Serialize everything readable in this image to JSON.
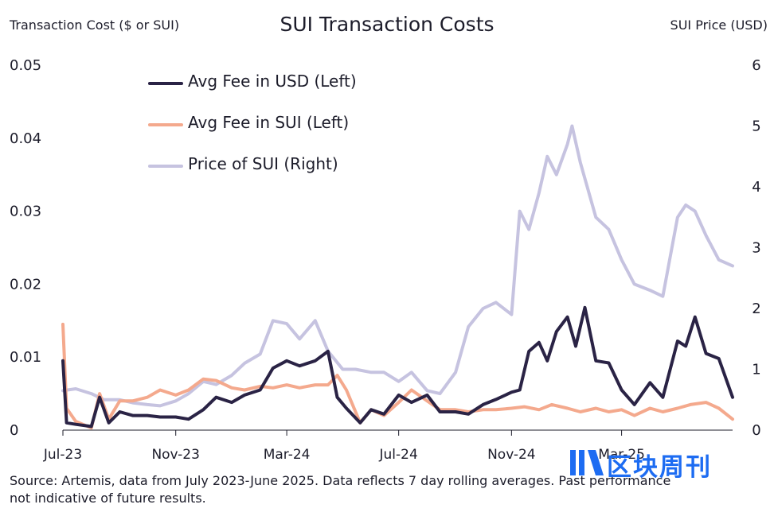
{
  "title": "SUI Transaction Costs",
  "ylabel_left": "Transaction Cost ($ or SUI)",
  "ylabel_right": "SUI Price (USD)",
  "source": "Source: Artemis, data from July 2023-June 2025. Data reflects 7 day rolling averages. Past performance not indicative of future results.",
  "watermark": "区块周刊",
  "colors": {
    "usd": "#2a2345",
    "sui": "#f4a98d",
    "price": "#c6c3e0",
    "axis": "#1c1c2a"
  },
  "chart_data": {
    "type": "line",
    "title": "SUI Transaction Costs",
    "xlabel": "",
    "ylabel": "Transaction Cost ($ or SUI)",
    "y2label": "SUI Price (USD)",
    "xlim": [
      "2023-07-01",
      "2025-06-30"
    ],
    "ylim": [
      0,
      0.05
    ],
    "y2lim": [
      0,
      6
    ],
    "x_ticks": [
      {
        "date": "2023-07-01",
        "label": "Jul-23"
      },
      {
        "date": "2023-11-01",
        "label": "Nov-23"
      },
      {
        "date": "2024-03-01",
        "label": "Mar-24"
      },
      {
        "date": "2024-07-01",
        "label": "Jul-24"
      },
      {
        "date": "2024-11-01",
        "label": "Nov-24"
      },
      {
        "date": "2025-03-01",
        "label": "Mar-25"
      }
    ],
    "y_ticks": [
      "0",
      "0.01",
      "0.02",
      "0.03",
      "0.04",
      "0.05"
    ],
    "y_tick_values": [
      0,
      0.01,
      0.02,
      0.03,
      0.04,
      0.05
    ],
    "y2_ticks": [
      "0",
      "1",
      "2",
      "3",
      "4",
      "5",
      "6"
    ],
    "y2_tick_values": [
      0,
      1,
      2,
      3,
      4,
      5,
      6
    ],
    "grid": false,
    "legend_position": "top-left",
    "series": [
      {
        "name": "Avg Fee in USD (Left)",
        "axis": "left",
        "color": "#2a2345",
        "x": [
          "2023-07-01",
          "2023-07-05",
          "2023-07-15",
          "2023-08-01",
          "2023-08-10",
          "2023-08-20",
          "2023-09-01",
          "2023-09-15",
          "2023-10-01",
          "2023-10-15",
          "2023-11-01",
          "2023-11-15",
          "2023-12-01",
          "2023-12-15",
          "2024-01-01",
          "2024-01-15",
          "2024-02-01",
          "2024-02-15",
          "2024-03-01",
          "2024-03-15",
          "2024-04-01",
          "2024-04-15",
          "2024-04-25",
          "2024-05-05",
          "2024-05-20",
          "2024-06-01",
          "2024-06-15",
          "2024-07-01",
          "2024-07-15",
          "2024-08-01",
          "2024-08-15",
          "2024-09-01",
          "2024-09-15",
          "2024-10-01",
          "2024-10-15",
          "2024-11-01",
          "2024-11-10",
          "2024-11-20",
          "2024-12-01",
          "2024-12-10",
          "2024-12-20",
          "2025-01-01",
          "2025-01-10",
          "2025-01-20",
          "2025-02-01",
          "2025-02-15",
          "2025-03-01",
          "2025-03-15",
          "2025-04-01",
          "2025-04-15",
          "2025-05-01",
          "2025-05-10",
          "2025-05-20",
          "2025-06-01",
          "2025-06-15",
          "2025-06-30"
        ],
        "values": [
          0.0095,
          0.001,
          0.0008,
          0.0005,
          0.0045,
          0.001,
          0.0025,
          0.002,
          0.002,
          0.0018,
          0.0018,
          0.0015,
          0.0028,
          0.0045,
          0.0038,
          0.0048,
          0.0055,
          0.0085,
          0.0095,
          0.0088,
          0.0095,
          0.0108,
          0.0045,
          0.003,
          0.001,
          0.0028,
          0.0022,
          0.0048,
          0.0038,
          0.0048,
          0.0025,
          0.0025,
          0.0022,
          0.0035,
          0.0042,
          0.0052,
          0.0055,
          0.0108,
          0.012,
          0.0095,
          0.0135,
          0.0155,
          0.0115,
          0.0168,
          0.0095,
          0.0092,
          0.0055,
          0.0035,
          0.0065,
          0.0045,
          0.0122,
          0.0115,
          0.0155,
          0.0105,
          0.0098,
          0.0045
        ]
      },
      {
        "name": "Avg Fee in SUI (Left)",
        "axis": "left",
        "color": "#f4a98d",
        "x": [
          "2023-07-01",
          "2023-07-05",
          "2023-07-15",
          "2023-08-01",
          "2023-08-10",
          "2023-08-20",
          "2023-09-01",
          "2023-09-15",
          "2023-10-01",
          "2023-10-15",
          "2023-11-01",
          "2023-11-15",
          "2023-12-01",
          "2023-12-15",
          "2024-01-01",
          "2024-01-15",
          "2024-02-01",
          "2024-02-15",
          "2024-03-01",
          "2024-03-15",
          "2024-04-01",
          "2024-04-15",
          "2024-04-25",
          "2024-05-05",
          "2024-05-20",
          "2024-06-01",
          "2024-06-15",
          "2024-07-01",
          "2024-07-15",
          "2024-08-01",
          "2024-08-15",
          "2024-09-01",
          "2024-09-15",
          "2024-10-01",
          "2024-10-15",
          "2024-11-01",
          "2024-11-15",
          "2024-12-01",
          "2024-12-15",
          "2025-01-01",
          "2025-01-15",
          "2025-02-01",
          "2025-02-15",
          "2025-03-01",
          "2025-03-15",
          "2025-04-01",
          "2025-04-15",
          "2025-05-01",
          "2025-05-15",
          "2025-06-01",
          "2025-06-15",
          "2025-06-30"
        ],
        "values": [
          0.0145,
          0.003,
          0.0012,
          0.0003,
          0.005,
          0.0015,
          0.004,
          0.004,
          0.0045,
          0.0055,
          0.0048,
          0.0055,
          0.007,
          0.0068,
          0.0058,
          0.0055,
          0.006,
          0.0058,
          0.0062,
          0.0058,
          0.0062,
          0.0062,
          0.0075,
          0.0055,
          0.001,
          0.0028,
          0.002,
          0.0038,
          0.0055,
          0.004,
          0.0028,
          0.0028,
          0.0025,
          0.0028,
          0.0028,
          0.003,
          0.0032,
          0.0028,
          0.0035,
          0.003,
          0.0025,
          0.003,
          0.0025,
          0.0028,
          0.002,
          0.003,
          0.0025,
          0.003,
          0.0035,
          0.0038,
          0.003,
          0.0015
        ]
      },
      {
        "name": "Price of SUI (Right)",
        "axis": "right",
        "color": "#c6c3e0",
        "x": [
          "2023-07-01",
          "2023-07-15",
          "2023-08-01",
          "2023-08-15",
          "2023-09-01",
          "2023-09-15",
          "2023-10-01",
          "2023-10-15",
          "2023-11-01",
          "2023-11-15",
          "2023-12-01",
          "2023-12-15",
          "2024-01-01",
          "2024-01-15",
          "2024-02-01",
          "2024-02-15",
          "2024-03-01",
          "2024-03-15",
          "2024-04-01",
          "2024-04-15",
          "2024-05-01",
          "2024-05-15",
          "2024-06-01",
          "2024-06-15",
          "2024-07-01",
          "2024-07-15",
          "2024-08-01",
          "2024-08-15",
          "2024-09-01",
          "2024-09-15",
          "2024-10-01",
          "2024-10-15",
          "2024-11-01",
          "2024-11-10",
          "2024-11-20",
          "2024-12-01",
          "2024-12-10",
          "2024-12-20",
          "2025-01-01",
          "2025-01-06",
          "2025-01-15",
          "2025-02-01",
          "2025-02-15",
          "2025-03-01",
          "2025-03-15",
          "2025-04-01",
          "2025-04-15",
          "2025-05-01",
          "2025-05-10",
          "2025-05-20",
          "2025-06-01",
          "2025-06-15",
          "2025-06-30"
        ],
        "values": [
          0.65,
          0.68,
          0.6,
          0.5,
          0.5,
          0.45,
          0.42,
          0.4,
          0.48,
          0.6,
          0.8,
          0.75,
          0.9,
          1.1,
          1.25,
          1.8,
          1.75,
          1.5,
          1.8,
          1.3,
          1.0,
          1.0,
          0.95,
          0.95,
          0.8,
          0.95,
          0.65,
          0.6,
          0.95,
          1.7,
          2.0,
          2.1,
          1.9,
          3.6,
          3.3,
          3.9,
          4.5,
          4.2,
          4.7,
          5.0,
          4.4,
          3.5,
          3.3,
          2.8,
          2.4,
          2.3,
          2.2,
          3.5,
          3.7,
          3.6,
          3.2,
          2.8,
          2.7
        ]
      }
    ]
  }
}
